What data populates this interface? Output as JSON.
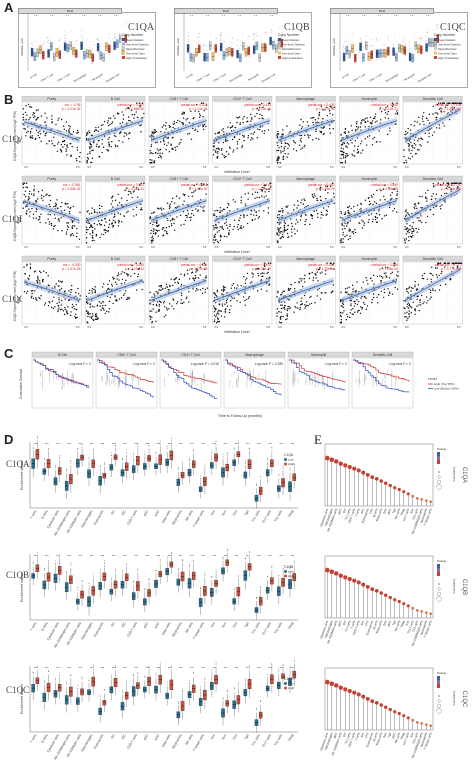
{
  "panels": {
    "A": "A",
    "B": "B",
    "C": "C",
    "D": "D",
    "E": "E"
  },
  "genes": [
    "C1QA",
    "C1QB",
    "C1QC"
  ],
  "panelA": {
    "strip": "BCR",
    "legend_title": "Copy Number",
    "legend": [
      "Deep Deletion",
      "Arm-level Deletion",
      "Diploid/Normal",
      "Arm-level Gain",
      "High Amplication"
    ],
    "legend_colors": [
      "#2c5aa0",
      "#8fb4e0",
      "#cccccc",
      "#f0c060",
      "#d04030"
    ],
    "categories": [
      "B Cell",
      "CD8+ T Cell",
      "CD4+ T Cell",
      "Macrophage",
      "Neutrophil",
      "Dendritic Cell"
    ]
  },
  "panelB": {
    "cells": [
      "Purity",
      "B Cell",
      "CD8+ T Cell",
      "CD4+ T Cell",
      "Macrophage",
      "Neutrophil",
      "Dendritic Cell"
    ],
    "ylabels": [
      "C1QA Expression Level (log2 TPM)",
      "C1QB Expression Level (log2 TPM)",
      "C1QC Expression Level (log2 TPM)"
    ],
    "xlabel": "Infiltration Level",
    "side": "BCR",
    "cor": [
      [
        "cor = -0.36",
        "partial.cor = 0.351",
        "partial.cor = 0.427",
        "partial.cor = 0.433",
        "partial.cor = 0.435",
        "partial.cor = 0.530",
        "partial.cor = 0.832"
      ],
      [
        "cor = -0.361",
        "partial.cor = 0.361",
        "partial.cor = 0.416",
        "partial.cor = 0.418",
        "partial.cor = 0.542",
        "partial.cor = 0.540",
        "partial.cor = 0.790"
      ],
      [
        "cor = -0.330",
        "partial.cor = 0.365",
        "partial.cor = 0.404",
        "partial.cor = 0.400",
        "partial.cor = 0.447",
        "partial.cor = 0.588",
        "partial.cor = 0.772"
      ]
    ],
    "pvals": [
      [
        "p = 2.21e-32",
        "p = 1.55e-30",
        "p = 1.41e-44",
        "p = 2.22e-46",
        "p = 2.27e-46",
        "p = 1.12e-71",
        "p = 1.25e-217"
      ],
      [
        "p = 2.55e-32",
        "p = 4.01e-31",
        "p = 1.42e-42",
        "p = 1.12e-42",
        "p = 2.49e-76",
        "p = 4.30e-76",
        "p = 1.18e-210"
      ],
      [
        "p = 1.47e-25",
        "p = 2.21e-32",
        "p = 1.21e-39",
        "p = 1.38e-39",
        "p = 1.20e-51",
        "p = 1.45e-94",
        "p = 3.77e-193"
      ]
    ]
  },
  "panelC": {
    "cells": [
      "B Cell",
      "CD8+ T Cell",
      "CD4+ T Cell",
      "Macrophage",
      "Neutrophil",
      "Dendritic Cell"
    ],
    "logrank": [
      "Log-rank P = 0",
      "Log-rank P = 0",
      "Log-rank P = 0.016",
      "Log-rank P = 0.289",
      "Log-rank P = 0",
      "Log-rank P = 0"
    ],
    "ylabel": "Cumulative Survival",
    "xlabel": "Time to Follow-Up (months)",
    "legend_title": "Level",
    "legend": [
      "High (Top 50%)",
      "Low (Bottom 50%)"
    ],
    "legend_colors": [
      "#d03030",
      "#3050c0"
    ]
  },
  "panelD": {
    "ylabel": "Enrichment scores",
    "legend": [
      "Low",
      "High"
    ],
    "legend_colors": [
      "#2a6f8f",
      "#c9503c"
    ],
    "cells": [
      "T cells",
      "B cells",
      "Cytotoxic cells",
      "NK CD56bright cells",
      "NK CD56dim cells",
      "Macrophages",
      "Eosinophils",
      "DC",
      "iDC",
      "CD8 T cells",
      "aDC",
      "pDC",
      "Mast cells",
      "Neutrophils",
      "NK cells",
      "T helper cells",
      "Tcm",
      "Tem",
      "TFH",
      "Tgd",
      "Th1 cells",
      "Th17 cells",
      "Th2 cells",
      "TReg"
    ]
  },
  "panelE": {
    "xlabels": [
      [
        "Cytotoxic cells",
        "Macrophages",
        "NK CD56dim cells",
        "aDC",
        "DC",
        "Th1 cells",
        "CD8 T cells",
        "T cells",
        "iDC",
        "Eosinophils",
        "TFH",
        "B cells",
        "Mast cells",
        "Tem",
        "pDC",
        "Tgd",
        "NK cells",
        "TReg",
        "Th17 cells",
        "Tcm",
        "Th2 cells",
        "NK CD56bright cells",
        "Neutrophils",
        "T helper cells"
      ],
      [
        "Cytotoxic cells",
        "Macrophages",
        "NK CD56dim cells",
        "aDC",
        "DC",
        "Th1 cells",
        "T cells",
        "CD8 T cells",
        "iDC",
        "TFH",
        "Eosinophils",
        "B cells",
        "Mast cells",
        "Tem",
        "pDC",
        "Tgd",
        "NK cells",
        "TReg",
        "Tcm",
        "Th17 cells",
        "Th2 cells",
        "NK CD56bright cells",
        "Neutrophils",
        "T helper cells"
      ],
      [
        "Cytotoxic cells",
        "Macrophages",
        "aDC",
        "NK CD56dim cells",
        "DC",
        "Th1 cells",
        "CD8 T cells",
        "T cells",
        "iDC",
        "TFH",
        "Eosinophils",
        "B cells",
        "Mast cells",
        "Tem",
        "Tgd",
        "pDC",
        "NK cells",
        "TReg",
        "Th17 cells",
        "Tcm",
        "Th2 cells",
        "NK CD56bright cells",
        "Neutrophils",
        "T helper cells"
      ]
    ],
    "values": [
      0.82,
      0.79,
      0.76,
      0.72,
      0.69,
      0.66,
      0.63,
      0.6,
      0.56,
      0.52,
      0.48,
      0.45,
      0.41,
      0.37,
      0.33,
      0.29,
      0.26,
      0.22,
      0.18,
      0.14,
      0.1,
      0.08,
      0.06,
      0.04
    ],
    "pvalue_title": "Pvalue",
    "size_title": "Correlation",
    "label": [
      "C1QA",
      "C1QB",
      "C1QC"
    ]
  },
  "chart_data": {
    "type": "scatter",
    "xlabel": "Infiltration Level",
    "series": [
      {
        "name": "C1QA",
        "values": [
          -0.36,
          0.351,
          0.427,
          0.433,
          0.435,
          0.53,
          0.832
        ]
      },
      {
        "name": "C1QB",
        "values": [
          -0.361,
          0.361,
          0.416,
          0.418,
          0.542,
          0.54,
          0.79
        ]
      },
      {
        "name": "C1QC",
        "values": [
          -0.33,
          0.365,
          0.404,
          0.4,
          0.447,
          0.588,
          0.772
        ]
      }
    ],
    "categories": [
      "Purity",
      "B Cell",
      "CD8+ T Cell",
      "CD4+ T Cell",
      "Macrophage",
      "Neutrophil",
      "Dendritic Cell"
    ]
  }
}
